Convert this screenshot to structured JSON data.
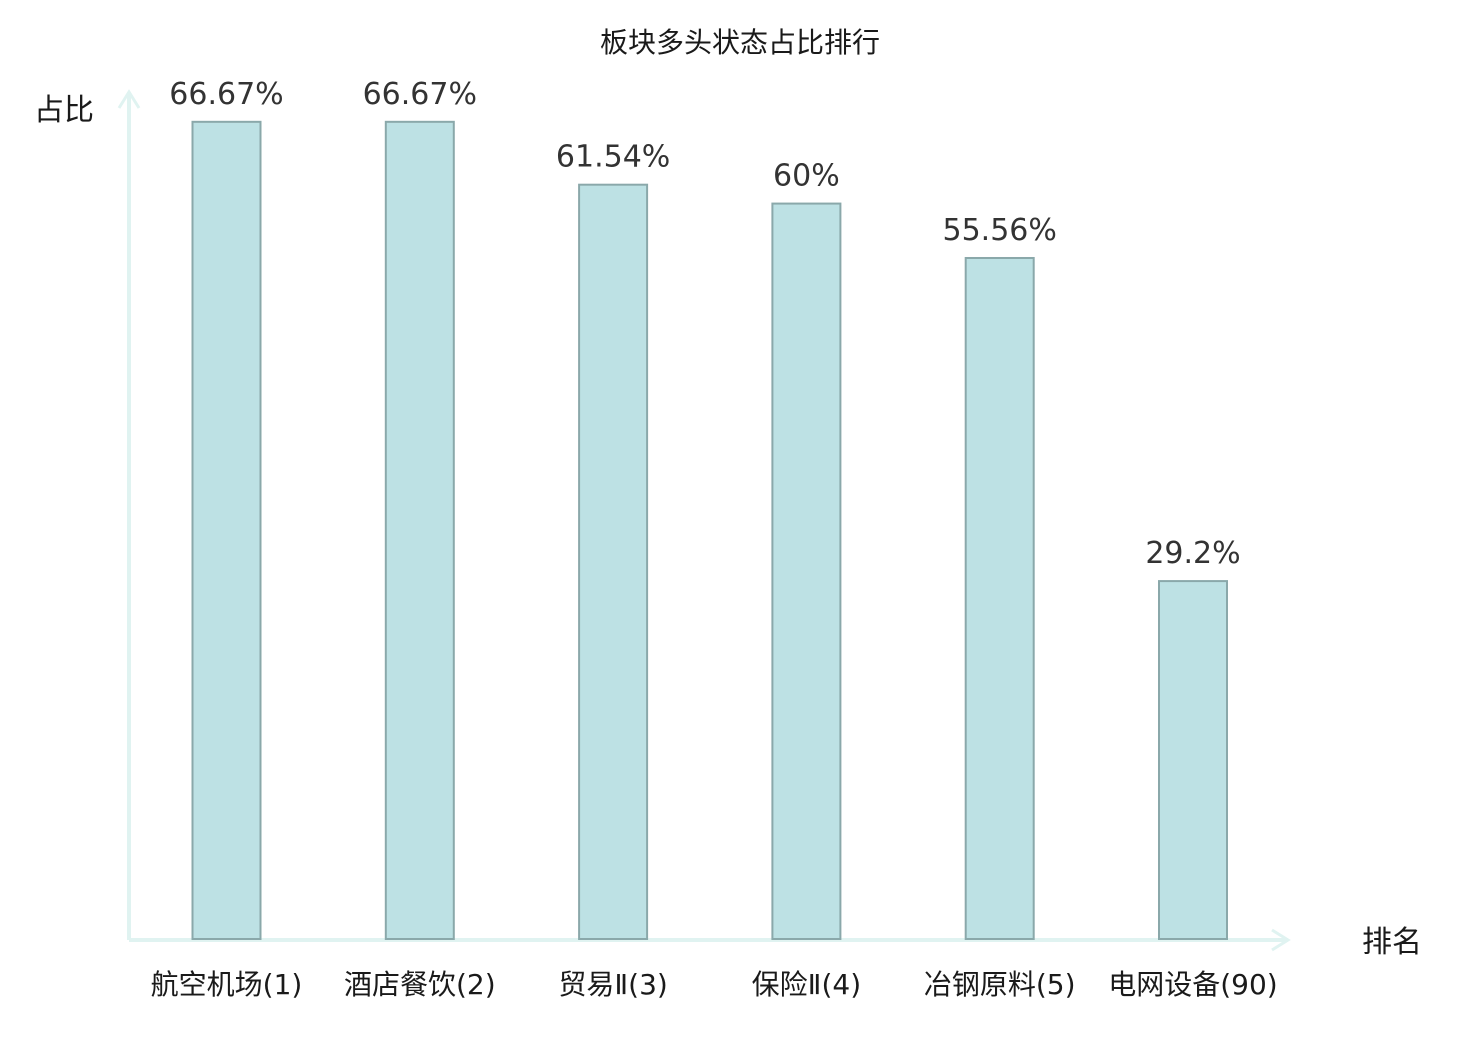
{
  "chart_data": {
    "type": "bar",
    "title": "板块多头状态占比排行",
    "xlabel": "排名",
    "ylabel": "占比",
    "categories": [
      "航空机场(1)",
      "酒店餐饮(2)",
      "贸易Ⅱ(3)",
      "保险Ⅱ(4)",
      "冶钢原料(5)",
      "电网设备(90)"
    ],
    "values": [
      66.67,
      66.67,
      61.54,
      60,
      55.56,
      29.2
    ],
    "value_labels": [
      "66.67%",
      "66.67%",
      "61.54%",
      "60%",
      "55.56%",
      "29.2%"
    ],
    "ylim": [
      0,
      70
    ],
    "grid": false,
    "legend": "none",
    "bar_color": "#bde1e4",
    "bar_edge_color": "#8aa8aa",
    "axis_color": "#e0f3f1",
    "highlight_index": 5,
    "highlight_color": "#e00000"
  }
}
